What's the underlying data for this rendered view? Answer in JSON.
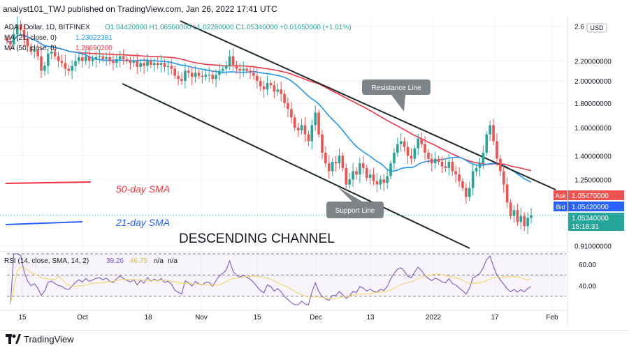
{
  "header": {
    "published_by": "analyst101_TWJ published on TradingView.com, Jan 26, 2022 17:41 UTC"
  },
  "legend": {
    "symbol": "ADA / Dollar, 1D, BITFINEX",
    "ohlc": "O1.04420000 H1.06500000 L1.02280000 C1.05340000 +0.01050000 (+1.01%)",
    "ma21": "MA (21, close, 0)",
    "ma21_value": "1.23022381",
    "ma50": "MA (50, close, 0)",
    "ma50_value": "1.28690200",
    "currency": "USD"
  },
  "annotations": {
    "resistance_line": "Resistance Line",
    "support_line": "Support Line",
    "sma50": "50-day SMA",
    "sma21": "21-day SMA",
    "channel": "DESCENDING CHANNEL"
  },
  "price_axis": {
    "labels": [
      "2.6",
      "2.20000000",
      "2.00000000",
      "1.80000000",
      "1.60000000",
      "1.40000000",
      "1.25000000",
      "0.91000000"
    ],
    "ask_label": "Ask",
    "ask_value": "1.05470000",
    "bid_label": "Bid",
    "bid_value": "1.05420000",
    "last_value": "1.05340000",
    "countdown": "15:18:31"
  },
  "rsi": {
    "label": "RSI (14, close, SMA, 14, 2)",
    "value": "39.26",
    "sma_value": "46.75",
    "na": "n/a",
    "na2": "n/a",
    "ticks": [
      "60.00",
      "40.00"
    ]
  },
  "time_axis": {
    "labels": [
      "15",
      "Oct",
      "18",
      "Nov",
      "15",
      "Dec",
      "13",
      "2022",
      "17",
      "Feb"
    ]
  },
  "footer": {
    "brand": "TradingView"
  },
  "colors": {
    "up": "#26a69a",
    "down": "#ef5350",
    "ma21": "#2196f3",
    "ma50": "#f23645",
    "channel": "#1f2a28",
    "rsi": "#7e57c2",
    "rsi_sma": "#f5d46a",
    "ask": "#ef5350",
    "bid": "#2962ff",
    "last": "#26a69a"
  },
  "chart_data": {
    "type": "candlestick",
    "title": "ADA / Dollar, 1D, BITFINEX",
    "price_range": [
      0.9,
      2.7
    ],
    "series": [
      {
        "name": "MA (21, close, 0)",
        "last": 1.23022381
      },
      {
        "name": "MA (50, close, 0)",
        "last": 1.286902
      }
    ],
    "candles_close": [
      2.42,
      2.38,
      2.5,
      2.62,
      2.55,
      2.45,
      2.36,
      2.3,
      2.32,
      2.25,
      2.1,
      2.15,
      2.28,
      2.3,
      2.25,
      2.2,
      2.18,
      2.12,
      2.1,
      2.15,
      2.2,
      2.24,
      2.2,
      2.25,
      2.2,
      2.22,
      2.24,
      2.25,
      2.22,
      2.24,
      2.2,
      2.18,
      2.22,
      2.25,
      2.22,
      2.2,
      2.18,
      2.2,
      2.14,
      2.18,
      2.15,
      2.2,
      2.16,
      2.18,
      2.16,
      2.18,
      2.14,
      2.15,
      2.12,
      2.05,
      2.02,
      2.0,
      2.1,
      2.08,
      2.04,
      2.08,
      2.05,
      2.04,
      2.06,
      2.06,
      2.02,
      2.06,
      2.1,
      2.12,
      2.15,
      2.25,
      2.16,
      2.12,
      2.1,
      2.12,
      2.1,
      2.08,
      2.05,
      2.0,
      1.95,
      1.92,
      1.98,
      1.96,
      1.9,
      1.92,
      1.88,
      1.8,
      1.75,
      1.68,
      1.6,
      1.58,
      1.62,
      1.55,
      1.5,
      1.62,
      1.72,
      1.55,
      1.42,
      1.35,
      1.3,
      1.36,
      1.35,
      1.4,
      1.32,
      1.22,
      1.25,
      1.3,
      1.28,
      1.35,
      1.32,
      1.26,
      1.28,
      1.24,
      1.22,
      1.25,
      1.23,
      1.27,
      1.35,
      1.42,
      1.48,
      1.5,
      1.46,
      1.4,
      1.38,
      1.45,
      1.52,
      1.48,
      1.42,
      1.38,
      1.35,
      1.38,
      1.36,
      1.33,
      1.32,
      1.36,
      1.3,
      1.28,
      1.24,
      1.2,
      1.15,
      1.2,
      1.3,
      1.32,
      1.35,
      1.42,
      1.55,
      1.62,
      1.5,
      1.38,
      1.3,
      1.22,
      1.12,
      1.05,
      1.08,
      1.02,
      1.05,
      1.0,
      1.04,
      1.0534
    ],
    "rsi": {
      "ticks": [
        60,
        40
      ],
      "last": 39.26,
      "sma_last": 46.75
    }
  }
}
